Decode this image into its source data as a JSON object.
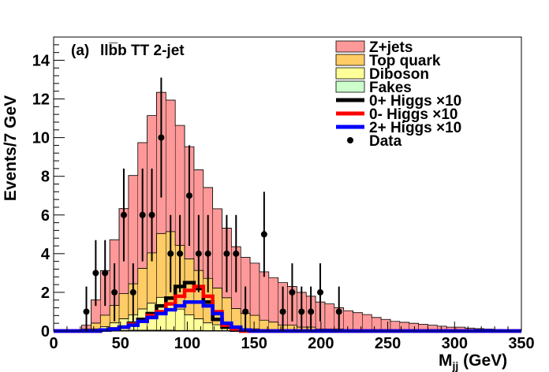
{
  "chart_data": {
    "type": "bar",
    "panel_label": "(a)",
    "channel_label": "llb̅b TT 2-jet",
    "xlabel": "M",
    "xlabel_sub": "jj",
    "xlabel_unit": " (GeV)",
    "ylabel": "Events/7 GeV",
    "xlim": [
      0,
      350
    ],
    "ylim": [
      0,
      15.2
    ],
    "x_ticks": [
      0,
      50,
      100,
      150,
      200,
      250,
      300,
      350
    ],
    "y_ticks": [
      0,
      2,
      4,
      6,
      8,
      10,
      12,
      14
    ],
    "bin_width": 7,
    "bin_start": 0,
    "stack_order": [
      "fakes",
      "diboson",
      "top",
      "zjets"
    ],
    "series": [
      {
        "key": "zjets",
        "name": "Z+jets",
        "color": "#ff9999",
        "values": [
          0,
          0,
          0,
          0.2,
          1.2,
          2.3,
          3.4,
          4.4,
          5.6,
          6.5,
          7.1,
          7.3,
          6.8,
          6.2,
          5.8,
          5.2,
          4.7,
          4.1,
          3.6,
          3.2,
          2.9,
          2.7,
          2.5,
          2.3,
          2.2,
          2.0,
          1.8,
          1.6,
          1.4,
          1.3,
          1.1,
          1.0,
          0.9,
          0.8,
          0.7,
          0.6,
          0.5,
          0.45,
          0.4,
          0.35,
          0.3,
          0.25,
          0.2,
          0.2,
          0.15,
          0.12,
          0.1,
          0.08,
          0.06,
          0.05
        ]
      },
      {
        "key": "top",
        "name": "Top quark",
        "color": "#ffcc66",
        "values": [
          0,
          0,
          0,
          0.1,
          0.3,
          0.6,
          0.9,
          1.3,
          1.6,
          2.1,
          2.6,
          3.3,
          3.7,
          3.3,
          2.9,
          2.5,
          2.3,
          1.9,
          1.5,
          1.0,
          0.8,
          0.7,
          0.5,
          0.4,
          0.3,
          0.3,
          0.2,
          0.2,
          0.1,
          0.1,
          0.1,
          0.05,
          0.05,
          0.05,
          0,
          0,
          0,
          0,
          0,
          0,
          0,
          0,
          0,
          0,
          0,
          0,
          0,
          0,
          0,
          0
        ]
      },
      {
        "key": "diboson",
        "name": "Diboson",
        "color": "#ffff99",
        "values": [
          0,
          0,
          0,
          0,
          0.1,
          0.2,
          0.4,
          0.6,
          0.8,
          1.1,
          1.4,
          1.7,
          1.4,
          1.1,
          0.8,
          0.6,
          0.4,
          0.3,
          0.2,
          0.15,
          0.1,
          0.1,
          0.05,
          0.05,
          0,
          0,
          0,
          0,
          0,
          0,
          0,
          0,
          0,
          0,
          0,
          0,
          0,
          0,
          0,
          0,
          0,
          0,
          0,
          0,
          0,
          0,
          0,
          0,
          0,
          0
        ]
      },
      {
        "key": "fakes",
        "name": "Fakes",
        "color": "#ccffcc",
        "values": [
          0,
          0,
          0,
          0,
          0.01,
          0.02,
          0.02,
          0.03,
          0.04,
          0.04,
          0.04,
          0.04,
          0.04,
          0.03,
          0.03,
          0.03,
          0.02,
          0.02,
          0.02,
          0.01,
          0.01,
          0.01,
          0.01,
          0.01,
          0,
          0,
          0,
          0,
          0,
          0,
          0,
          0,
          0,
          0,
          0,
          0,
          0,
          0,
          0,
          0,
          0,
          0,
          0,
          0,
          0,
          0,
          0,
          0,
          0,
          0
        ]
      }
    ],
    "signals": [
      {
        "key": "h0p",
        "name": "0+ Higgs",
        "label_suffix": "×10",
        "color": "#000000",
        "values": [
          0,
          0,
          0,
          0,
          0,
          0.05,
          0.1,
          0.2,
          0.4,
          0.6,
          0.9,
          1.3,
          1.7,
          2.3,
          2.5,
          2.2,
          1.5,
          0.6,
          0.2,
          0.05,
          0,
          0,
          0,
          0,
          0,
          0,
          0,
          0,
          0,
          0,
          0,
          0,
          0,
          0,
          0,
          0,
          0,
          0,
          0,
          0,
          0,
          0,
          0,
          0,
          0,
          0,
          0,
          0,
          0,
          0
        ]
      },
      {
        "key": "h0m",
        "name": "0- Higgs",
        "label_suffix": "×10",
        "color": "#ff0000",
        "values": [
          0,
          0,
          0,
          0,
          0,
          0.05,
          0.1,
          0.2,
          0.35,
          0.5,
          0.8,
          1.0,
          1.4,
          1.8,
          2.1,
          2.3,
          1.8,
          1.0,
          0.3,
          0.1,
          0,
          0,
          0,
          0,
          0,
          0,
          0,
          0,
          0,
          0,
          0,
          0,
          0,
          0,
          0,
          0,
          0,
          0,
          0,
          0,
          0,
          0,
          0,
          0,
          0,
          0,
          0,
          0,
          0,
          0
        ]
      },
      {
        "key": "h2p",
        "name": "2+ Higgs",
        "label_suffix": "×10",
        "color": "#0000ff",
        "values": [
          0,
          0,
          0,
          0,
          0,
          0.05,
          0.1,
          0.2,
          0.3,
          0.5,
          0.7,
          0.9,
          1.1,
          1.3,
          1.5,
          1.5,
          1.3,
          0.9,
          0.4,
          0.2,
          0.05,
          0,
          0,
          0,
          0,
          0,
          0,
          0,
          0,
          0,
          0,
          0,
          0,
          0,
          0,
          0,
          0,
          0,
          0,
          0,
          0,
          0,
          0,
          0,
          0,
          0,
          0,
          0,
          0,
          0
        ]
      }
    ],
    "data_points": {
      "name": "Data",
      "x": [
        24.5,
        31.5,
        38.5,
        45.5,
        52.5,
        59.5,
        66.5,
        73.5,
        80.5,
        87.5,
        94.5,
        101.5,
        108.5,
        115.5,
        129.5,
        136.5,
        143.5,
        157.5,
        171.5,
        178.5,
        185.5,
        192.5,
        199.5,
        213.5
      ],
      "y": [
        1,
        3,
        3,
        2,
        6,
        2,
        6,
        6,
        10,
        4,
        4,
        7,
        4,
        4,
        4,
        4,
        1,
        5,
        1,
        2,
        1,
        1,
        2,
        1
      ],
      "err": [
        1.3,
        1.7,
        1.7,
        1.5,
        2.4,
        1.5,
        2.4,
        2.4,
        3.1,
        2.0,
        2.0,
        2.6,
        2.0,
        2.0,
        2.0,
        2.0,
        1.3,
        2.2,
        1.3,
        1.5,
        1.3,
        1.3,
        1.5,
        1.3
      ]
    },
    "legend": {
      "position": "top-right",
      "entries": [
        {
          "label": "Z+jets",
          "kind": "box",
          "color": "#ff9999"
        },
        {
          "label": "Top quark",
          "kind": "box",
          "color": "#ffcc66"
        },
        {
          "label": "Diboson",
          "kind": "box",
          "color": "#ffff99"
        },
        {
          "label": "Fakes",
          "kind": "box",
          "color": "#ccffcc"
        },
        {
          "label": "0+ Higgs",
          "suffix": "×10",
          "kind": "line",
          "color": "#000000"
        },
        {
          "label": "0- Higgs",
          "suffix": "×10",
          "kind": "line",
          "color": "#ff0000"
        },
        {
          "label": "2+ Higgs",
          "suffix": "×10",
          "kind": "line",
          "color": "#0000ff"
        },
        {
          "label": "Data",
          "kind": "marker",
          "color": "#000000"
        }
      ]
    }
  }
}
